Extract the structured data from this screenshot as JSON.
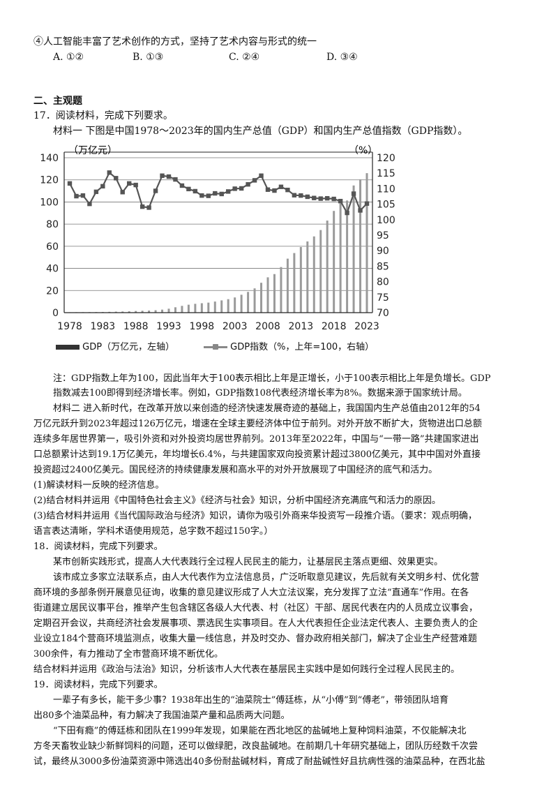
{
  "q16": {
    "option4": "④人工智能丰富了艺术创作的方式，坚持了艺术内容与形式的统一",
    "choices": [
      "A. ①②",
      "B. ①③",
      "C. ②④",
      "D. ③④"
    ]
  },
  "section2_title": "二、主观题",
  "q17": {
    "stem": "17．阅读材料，完成下列要求。",
    "m1_intro": "材料一  下图是中国1978～2023年的国内生产总值（GDP）和国内生产总值指数（GDP指数）。",
    "legend_gdp": "GDP（万亿元，左轴）",
    "legend_idx": "GDP指数（%，上年=100，右轴）",
    "note": [
      "注：GDP指数上年为100，因此当年大于100表示相比上年是正增长，小于100表示相比上年是负增长。GDP",
      "指数减去100即得到经济增长率。例如，GDP指数108代表经济增长率为8%。数据来源于国家统计局。"
    ],
    "m2": [
      "材料二  进入新时代，在改革开放以来创造的经济快速发展奇迹的基础上，我国国内生产总值由2012年的54",
      "万亿元跃升到2023年超过126万亿元，增速在全球主要经济体中位于前列。对外开放不断扩大，货物进出口总额",
      "连续多年居世界第一，吸引外资和对外投资均居世界前列。2013年至2022年，中国与“一带一路”共建国家进出",
      "口总额累计达到19.1万亿美元，年均增长6.4%，与共建国家双向投资累计超过3800亿美元，其中中国对外直接",
      "投资超过2400亿美元。国民经济的持续健康发展和高水平的对外开放展现了中国经济的底气和活力。"
    ],
    "tasks": [
      "(1)解读材料一反映的经济信息。",
      "(2)结合材料并运用《中国特色社会主义》《经济与社会》知识，分析中国经济充满底气和活力的原因。",
      "(3)结合材料并运用《当代国际政治与经济》知识，请你为吸引外商来华投资写一段推介语。（要求：观点明确，",
      "语言表达清晰，学科术语使用规范，总字数不超过150字。）"
    ]
  },
  "q18": {
    "stem": "18．阅读材料，完成下列要求。",
    "p1": "某市创新实践形式，提高人大代表践行全过程人民民主的能力，让基层民主落点更细、效果更实。",
    "p2": [
      "该市成立多家立法联系点，由人大代表作为立法信息员，广泛听取意见建议，先后就有关文明乡村、优化营",
      "商环境的多部条例开展意见征询，收集的意见建议形成了人大立法议案，充分发挥了立法“直通车”作用。在各",
      "街道建立居民议事平台，推举产生包含辖区各级人大代表、村（社区）干部、居民代表在内的人员成立议事会，",
      "定期召开会议，共商经济社会发展事项、票选民生实事项目。在人大代表担任企业法定代表人、主要负责人的企",
      "业设立184个营商环境监测点，收集大量一线信息，并及时交办、督办政府相关部门，解决了企业生产经营难题",
      "300余件，有力推动了全市营商环境不断优化。"
    ],
    "task": "结合材料并运用《政治与法治》知识，分析该市人大代表在基层民主实践中是如何践行全过程人民民主的。"
  },
  "q19": {
    "stem": "19．阅读材料，完成下列要求。",
    "p1": [
      "一辈子有多长，能干多少事？1938年出生的“油菜院士”傅廷栋，从“小傅”到“傅老”，带领团队培育",
      "出80多个油菜品种，有力解决了我国油菜产量和品质两大问题。"
    ],
    "p2": [
      "“下田有瘾”的傅廷栋和团队在1999年发现，如果能在西北地区的盐碱地上复种饲料油菜，不仅能解决北",
      "方冬天畜牧业缺少新鲜饲料的问题，还可以做绿肥，改良盐碱地。在前期几十年研究基础上，团队历经数千次尝",
      "试，最终从3000多份油菜资源中筛选出40多份耐盐碱材料，育成了耐盐碱性好且抗病性强的油菜品种，在西北盐"
    ]
  },
  "chart_data": {
    "type": "bar+line",
    "left_unit": "（万亿元）",
    "right_unit": "（%）",
    "x_ticks": [
      "1978",
      "1983",
      "1988",
      "1993",
      "1998",
      "2003",
      "2008",
      "2013",
      "2018",
      "2023"
    ],
    "left_ticks": [
      "0",
      "20",
      "40",
      "60",
      "80",
      "100",
      "120",
      "140"
    ],
    "right_ticks": [
      "70",
      "75",
      "80",
      "85",
      "90",
      "95",
      "100",
      "105",
      "110",
      "115",
      "120"
    ],
    "ylim_left": [
      0,
      140
    ],
    "ylim_right": [
      70,
      120
    ],
    "years": [
      1978,
      1979,
      1980,
      1981,
      1982,
      1983,
      1984,
      1985,
      1986,
      1987,
      1988,
      1989,
      1990,
      1991,
      1992,
      1993,
      1994,
      1995,
      1996,
      1997,
      1998,
      1999,
      2000,
      2001,
      2002,
      2003,
      2004,
      2005,
      2006,
      2007,
      2008,
      2009,
      2010,
      2011,
      2012,
      2013,
      2014,
      2015,
      2016,
      2017,
      2018,
      2019,
      2020,
      2021,
      2022,
      2023
    ],
    "series": [
      {
        "name": "GDP",
        "axis": "left",
        "values": [
          0.37,
          0.41,
          0.46,
          0.49,
          0.54,
          0.6,
          0.73,
          0.91,
          1.04,
          1.22,
          1.51,
          1.72,
          1.89,
          2.2,
          2.72,
          3.57,
          4.86,
          6.13,
          7.18,
          7.97,
          8.52,
          9.06,
          10.03,
          11.09,
          12.17,
          13.74,
          16.18,
          18.73,
          21.94,
          27.0,
          31.92,
          34.85,
          41.21,
          48.79,
          53.86,
          59.3,
          64.36,
          68.89,
          74.64,
          83.2,
          91.93,
          98.65,
          101.36,
          114.92,
          120.47,
          126.06
        ]
      },
      {
        "name": "GDP指数",
        "axis": "right",
        "values": [
          111.7,
          107.6,
          107.8,
          105.1,
          109.0,
          110.8,
          115.2,
          113.4,
          108.9,
          111.7,
          111.2,
          104.2,
          103.9,
          109.3,
          114.2,
          113.9,
          113.0,
          111.0,
          109.9,
          109.2,
          107.8,
          107.7,
          108.5,
          108.3,
          109.1,
          110.0,
          110.1,
          111.4,
          112.7,
          114.2,
          109.7,
          109.4,
          110.6,
          109.6,
          107.9,
          107.8,
          107.4,
          107.0,
          106.8,
          106.9,
          106.7,
          106.0,
          102.2,
          108.4,
          103.0,
          105.2
        ]
      }
    ]
  }
}
